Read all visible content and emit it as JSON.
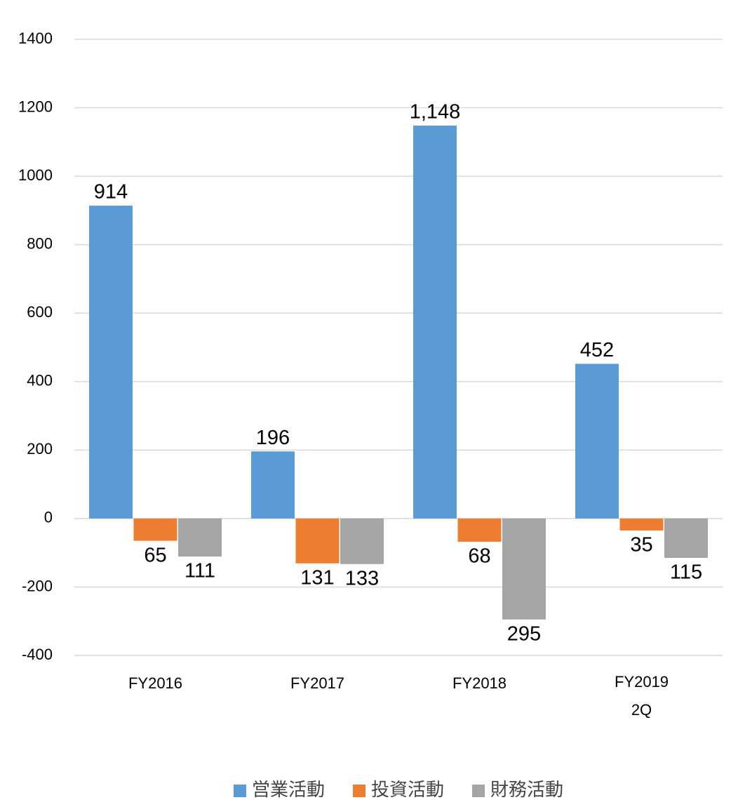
{
  "chart_data": {
    "type": "bar",
    "categories": [
      "FY2016",
      "FY2017",
      "FY2018",
      "FY2019\n2Q"
    ],
    "series": [
      {
        "name": "営業活動",
        "color": "#5b9bd5",
        "values": [
          914,
          196,
          1148,
          452
        ],
        "value_labels": [
          "914",
          "196",
          "1,148",
          "452"
        ]
      },
      {
        "name": "投資活動",
        "color": "#ed7d31",
        "values": [
          -65,
          -131,
          -68,
          -35
        ],
        "value_labels": [
          "65",
          "131",
          "68",
          "35"
        ]
      },
      {
        "name": "財務活動",
        "color": "#a5a5a5",
        "values": [
          -111,
          -133,
          -295,
          -115
        ],
        "value_labels": [
          "111",
          "133",
          "295",
          "115"
        ]
      }
    ],
    "ylim": [
      -400,
      1400
    ],
    "yticks": [
      -400,
      -200,
      0,
      200,
      400,
      600,
      800,
      1000,
      1200,
      1400
    ],
    "grid": true,
    "legend": "bottom"
  }
}
